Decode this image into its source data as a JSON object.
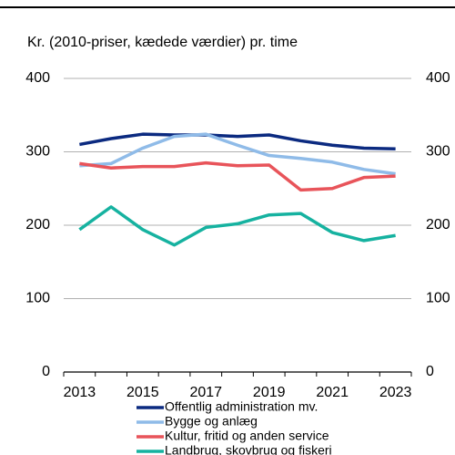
{
  "chart_data": {
    "type": "line",
    "subtitle": "Kr. (2010-priser, kædede værdier) pr. time",
    "categories": [
      "2013",
      null,
      "2015",
      null,
      "2017",
      null,
      "2019",
      null,
      "2021",
      null,
      "2023"
    ],
    "series": [
      {
        "name": "Offentlig administration mv.",
        "color": "#0b2a80",
        "values": [
          310,
          318,
          324,
          323,
          323,
          321,
          323,
          315,
          309,
          305,
          304
        ]
      },
      {
        "name": "Bygge og anlæg",
        "color": "#8fbbe8",
        "values": [
          281,
          284,
          305,
          321,
          324,
          309,
          295,
          291,
          286,
          276,
          270
        ]
      },
      {
        "name": "Kultur, fritid og anden service",
        "color": "#e8545a",
        "values": [
          284,
          278,
          280,
          280,
          285,
          281,
          282,
          248,
          250,
          265,
          267
        ]
      },
      {
        "name": "Landbrug, skovbrug og fiskeri",
        "color": "#16b2a0",
        "values": [
          194,
          225,
          194,
          173,
          197,
          202,
          214,
          216,
          190,
          179,
          186
        ]
      }
    ],
    "ylim": [
      0,
      400
    ],
    "yticks": [
      0,
      100,
      200,
      300,
      400
    ],
    "grid": true
  }
}
